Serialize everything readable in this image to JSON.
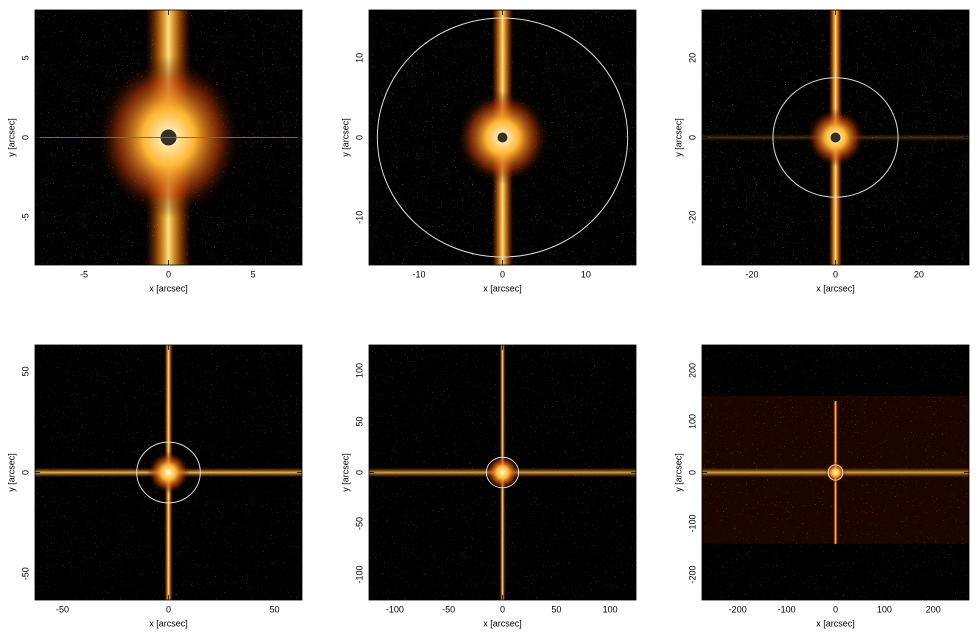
{
  "chart_data": [
    {
      "type": "image",
      "xlabel": "x [arcsec]",
      "ylabel": "y [arcsec]",
      "xlim": [
        -7.9,
        7.9
      ],
      "ylim": [
        -8,
        8
      ],
      "xticks": [
        -5,
        0,
        5
      ],
      "yticks": [
        -5,
        0,
        5
      ]
    },
    {
      "type": "image",
      "xlabel": "x [arcsec]",
      "ylabel": "y [arcsec]",
      "xlim": [
        -16,
        16
      ],
      "ylim": [
        -16,
        16
      ],
      "xticks": [
        -10,
        0,
        10
      ],
      "yticks": [
        -10,
        0,
        10
      ],
      "circle_radius": 15
    },
    {
      "type": "image",
      "xlabel": "x [arcsec]",
      "ylabel": "y [arcsec]",
      "xlim": [
        -32,
        32
      ],
      "ylim": [
        -32,
        32
      ],
      "xticks": [
        -20,
        0,
        20
      ],
      "yticks": [
        -20,
        0,
        20
      ],
      "circle_radius": 15
    },
    {
      "type": "image",
      "xlabel": "x [arcsec]",
      "ylabel": "y [arcsec]",
      "xlim": [
        -63,
        63
      ],
      "ylim": [
        -63,
        63
      ],
      "xticks": [
        -50,
        0,
        50
      ],
      "yticks": [
        -50,
        0,
        50
      ],
      "circle_radius": 15
    },
    {
      "type": "image",
      "xlabel": "x [arcsec]",
      "ylabel": "y [arcsec]",
      "xlim": [
        -124,
        124
      ],
      "ylim": [
        -125,
        125
      ],
      "xticks": [
        -100,
        -50,
        0,
        50,
        100
      ],
      "yticks": [
        -100,
        -50,
        0,
        50,
        100
      ],
      "circle_radius": 15
    },
    {
      "type": "image",
      "xlabel": "x [arcsec]",
      "ylabel": "y [arcsec]",
      "xlim": [
        -273,
        273
      ],
      "ylim": [
        -250,
        250
      ],
      "xticks": [
        -200,
        -100,
        0,
        100,
        200
      ],
      "yticks": [
        -200,
        -100,
        0,
        100,
        200
      ],
      "circle_radius": 15
    }
  ]
}
